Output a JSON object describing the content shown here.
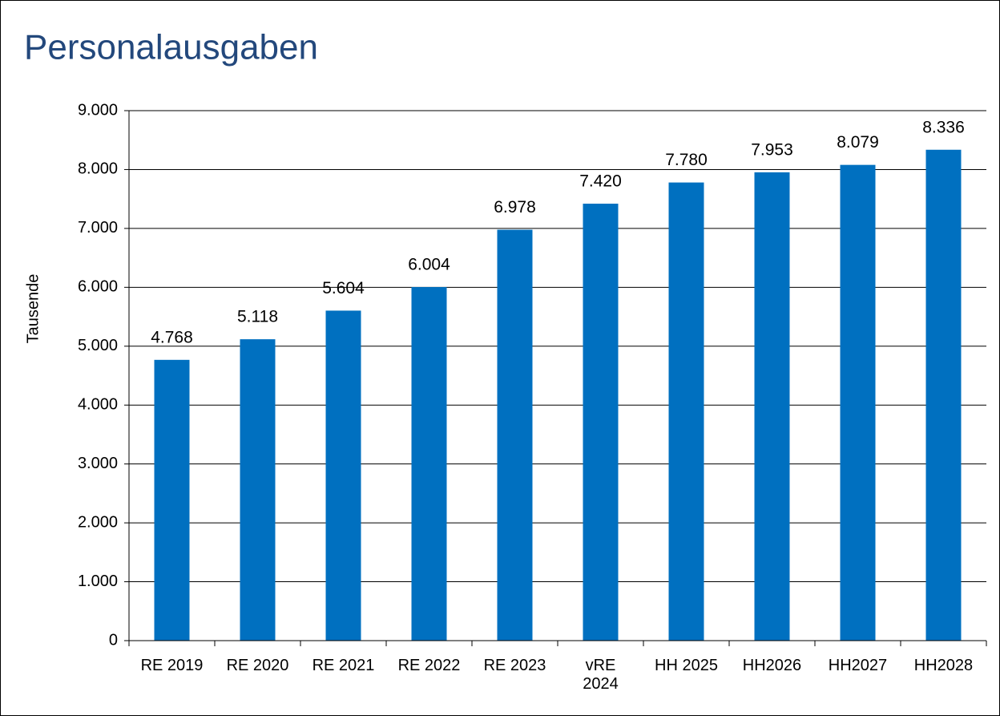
{
  "chart_data": {
    "type": "bar",
    "title": "Personalausgaben",
    "y_label": "Tausende",
    "categories": [
      "RE 2019",
      "RE 2020",
      "RE 2021",
      "RE 2022",
      "RE 2023",
      "vRE 2024",
      "HH 2025",
      "HH2026",
      "HH2027",
      "HH2028"
    ],
    "values": [
      4768,
      5118,
      5604,
      6004,
      6978,
      7420,
      7780,
      7953,
      8079,
      8336
    ],
    "value_labels": [
      "4.768",
      "5.118",
      "5.604",
      "6.004",
      "6.978",
      "7.420",
      "7.780",
      "7.953",
      "8.079",
      "8.336"
    ],
    "color": "#0070c0",
    "ylim": [
      0,
      9000
    ],
    "yticks": [
      0,
      {
        "value": 1000,
        "label": "1.000"
      },
      {
        "value": 2000,
        "label": "2.000"
      },
      {
        "value": 3000,
        "label": "3.000"
      },
      {
        "value": 4000,
        "label": "4.000"
      },
      {
        "value": 5000,
        "label": "5.000"
      },
      {
        "value": 6000,
        "label": "6.000"
      },
      {
        "value": 7000,
        "label": "7.000"
      },
      {
        "value": 8000,
        "label": "8.000"
      },
      {
        "value": 9000,
        "label": "9.000"
      }
    ],
    "grid": true
  }
}
